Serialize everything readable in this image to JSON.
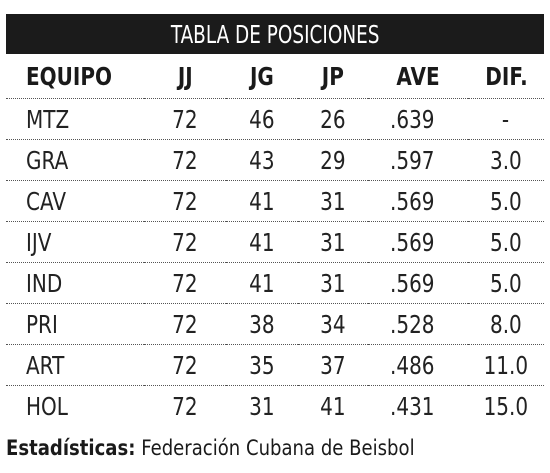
{
  "title": "TABLA DE POSICIONES",
  "columns": [
    "EQUIPO",
    "JJ",
    "JG",
    "JP",
    "AVE",
    "DIF."
  ],
  "rows": [
    {
      "team": "MTZ",
      "jj": "72",
      "jg": "46",
      "jp": "26",
      "ave": ".639",
      "dif": "-"
    },
    {
      "team": "GRA",
      "jj": "72",
      "jg": "43",
      "jp": "29",
      "ave": ".597",
      "dif": "3.0"
    },
    {
      "team": "CAV",
      "jj": "72",
      "jg": "41",
      "jp": "31",
      "ave": ".569",
      "dif": "5.0"
    },
    {
      "team": "IJV",
      "jj": "72",
      "jg": "41",
      "jp": "31",
      "ave": ".569",
      "dif": "5.0"
    },
    {
      "team": "IND",
      "jj": "72",
      "jg": "41",
      "jp": "31",
      "ave": ".569",
      "dif": "5.0"
    },
    {
      "team": "PRI",
      "jj": "72",
      "jg": "38",
      "jp": "34",
      "ave": ".528",
      "dif": "8.0"
    },
    {
      "team": "ART",
      "jj": "72",
      "jg": "35",
      "jp": "37",
      "ave": ".486",
      "dif": "11.0"
    },
    {
      "team": "HOL",
      "jj": "72",
      "jg": "31",
      "jp": "41",
      "ave": ".431",
      "dif": "15.0"
    }
  ],
  "source": {
    "label": "Estadísticas",
    "separator": ":",
    "text": " Federación Cubana de Beisbol"
  },
  "colors": {
    "title_background": "#1b1b1b",
    "title_text": "#ffffff",
    "text": "#1a1a1a"
  }
}
